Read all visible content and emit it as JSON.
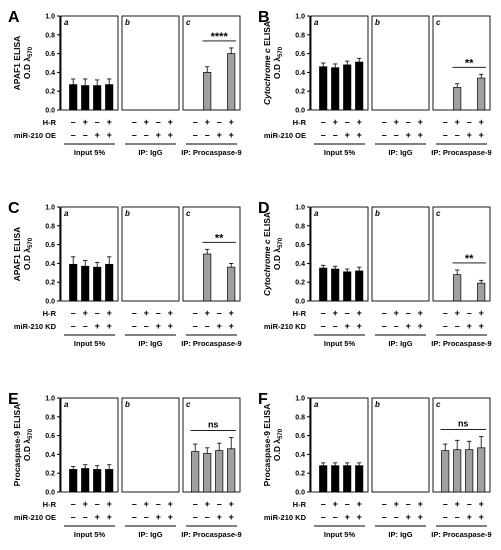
{
  "figure": {
    "panels": [
      {
        "letter": "A",
        "ylabel_pre": "APAF1",
        "ylabel_italic": "",
        "ylabel_post": " ELISA",
        "row2_label": "miR-210 OE",
        "sig_label": "****"
      },
      {
        "letter": "B",
        "ylabel_pre": "",
        "ylabel_italic": "Cytochrome c",
        "ylabel_post": " ELISA",
        "row2_label": "miR-210 OE",
        "sig_label": "**"
      },
      {
        "letter": "C",
        "ylabel_pre": "APAF1",
        "ylabel_italic": "",
        "ylabel_post": " ELISA",
        "row2_label": "miR-210 KD",
        "sig_label": "**"
      },
      {
        "letter": "D",
        "ylabel_pre": "",
        "ylabel_italic": "Cytochrome c",
        "ylabel_post": " ELISA",
        "row2_label": "miR-210 KD",
        "sig_label": "**"
      },
      {
        "letter": "E",
        "ylabel_pre": "Procaspase-9",
        "ylabel_italic": "",
        "ylabel_post": " ELISA",
        "row2_label": "miR-210 OE",
        "sig_label": "ns"
      },
      {
        "letter": "F",
        "ylabel_pre": "Procaspase-9",
        "ylabel_italic": "",
        "ylabel_post": " ELISA",
        "row2_label": "miR-210 KD",
        "sig_label": "ns"
      }
    ],
    "ylabel_line2": "O.D λ",
    "ylabel_sub": "570",
    "row1_label": "H-R",
    "sign_minus": "–",
    "sign_plus": "+",
    "subpanel_letters": [
      "a",
      "b",
      "c"
    ],
    "group_labels": [
      "Input 5%",
      "IP: IgG",
      "IP: Procaspase-9"
    ]
  },
  "chart_data": [
    {
      "type": "bar",
      "panel": "A",
      "ylim": [
        0,
        1.0
      ],
      "yticks": [
        "0.0",
        "0.2",
        "0.4",
        "0.6",
        "0.8",
        "1.0"
      ],
      "groups": [
        "Input 5%",
        "IP: IgG",
        "IP: Procaspase-9"
      ],
      "hr": [
        "–",
        "+",
        "–",
        "+"
      ],
      "mir": [
        "–",
        "–",
        "+",
        "+"
      ],
      "values": [
        [
          0.27,
          0.26,
          0.26,
          0.27
        ],
        [
          0,
          0,
          0,
          0
        ],
        [
          null,
          0.4,
          null,
          0.6
        ]
      ],
      "errors": [
        [
          0.06,
          0.07,
          0.06,
          0.06
        ],
        [
          0,
          0,
          0,
          0
        ],
        [
          null,
          0.06,
          null,
          0.06
        ]
      ],
      "colors": [
        "#000000",
        "#ffffff",
        "#a0a0a0"
      ],
      "significance": {
        "group": 2,
        "bars": [
          1,
          3
        ],
        "label": "****"
      }
    },
    {
      "type": "bar",
      "panel": "B",
      "ylim": [
        0,
        1.0
      ],
      "yticks": [
        "0.0",
        "0.2",
        "0.4",
        "0.6",
        "0.8",
        "1.0"
      ],
      "groups": [
        "Input 5%",
        "IP: IgG",
        "IP: Procaspase-9"
      ],
      "hr": [
        "–",
        "+",
        "–",
        "+"
      ],
      "mir": [
        "–",
        "–",
        "+",
        "+"
      ],
      "values": [
        [
          0.46,
          0.45,
          0.48,
          0.51
        ],
        [
          0,
          0,
          0,
          0
        ],
        [
          null,
          0.24,
          null,
          0.34
        ]
      ],
      "errors": [
        [
          0.04,
          0.04,
          0.04,
          0.04
        ],
        [
          0,
          0,
          0,
          0
        ],
        [
          null,
          0.04,
          null,
          0.04
        ]
      ],
      "colors": [
        "#000000",
        "#ffffff",
        "#a0a0a0"
      ],
      "significance": {
        "group": 2,
        "bars": [
          1,
          3
        ],
        "label": "**"
      }
    },
    {
      "type": "bar",
      "panel": "C",
      "ylim": [
        0,
        1.0
      ],
      "yticks": [
        "0.0",
        "0.2",
        "0.4",
        "0.6",
        "0.8",
        "1.0"
      ],
      "groups": [
        "Input 5%",
        "IP: IgG",
        "IP: Procaspase-9"
      ],
      "hr": [
        "–",
        "+",
        "–",
        "+"
      ],
      "mir": [
        "–",
        "–",
        "+",
        "+"
      ],
      "values": [
        [
          0.39,
          0.37,
          0.36,
          0.39
        ],
        [
          0,
          0,
          0,
          0
        ],
        [
          null,
          0.5,
          null,
          0.36
        ]
      ],
      "errors": [
        [
          0.08,
          0.06,
          0.05,
          0.08
        ],
        [
          0,
          0,
          0,
          0
        ],
        [
          null,
          0.05,
          null,
          0.04
        ]
      ],
      "colors": [
        "#000000",
        "#ffffff",
        "#a0a0a0"
      ],
      "significance": {
        "group": 2,
        "bars": [
          1,
          3
        ],
        "label": "**"
      }
    },
    {
      "type": "bar",
      "panel": "D",
      "ylim": [
        0,
        1.0
      ],
      "yticks": [
        "0.0",
        "0.2",
        "0.4",
        "0.6",
        "0.8",
        "1.0"
      ],
      "groups": [
        "Input 5%",
        "IP: IgG",
        "IP: Procaspase-9"
      ],
      "hr": [
        "–",
        "+",
        "–",
        "+"
      ],
      "mir": [
        "–",
        "–",
        "+",
        "+"
      ],
      "values": [
        [
          0.35,
          0.34,
          0.31,
          0.32
        ],
        [
          0,
          0,
          0,
          0
        ],
        [
          null,
          0.28,
          null,
          0.19
        ]
      ],
      "errors": [
        [
          0.03,
          0.03,
          0.03,
          0.04
        ],
        [
          0,
          0,
          0,
          0
        ],
        [
          null,
          0.05,
          null,
          0.03
        ]
      ],
      "colors": [
        "#000000",
        "#ffffff",
        "#a0a0a0"
      ],
      "significance": {
        "group": 2,
        "bars": [
          1,
          3
        ],
        "label": "**"
      }
    },
    {
      "type": "bar",
      "panel": "E",
      "ylim": [
        0,
        1.0
      ],
      "yticks": [
        "0.0",
        "0.2",
        "0.4",
        "0.6",
        "0.8",
        "1.0"
      ],
      "groups": [
        "Input 5%",
        "IP: IgG",
        "IP: Procaspase-9"
      ],
      "hr": [
        "–",
        "+",
        "–",
        "+"
      ],
      "mir": [
        "–",
        "–",
        "+",
        "+"
      ],
      "values": [
        [
          0.24,
          0.25,
          0.24,
          0.24
        ],
        [
          0,
          0,
          0,
          0
        ],
        [
          0.43,
          0.41,
          0.44,
          0.46
        ]
      ],
      "errors": [
        [
          0.03,
          0.04,
          0.04,
          0.05
        ],
        [
          0,
          0,
          0,
          0
        ],
        [
          0.08,
          0.06,
          0.08,
          0.12
        ]
      ],
      "colors": [
        "#000000",
        "#ffffff",
        "#a0a0a0"
      ],
      "significance": {
        "group": 2,
        "bars": [
          0,
          3
        ],
        "label": "ns"
      }
    },
    {
      "type": "bar",
      "panel": "F",
      "ylim": [
        0,
        1.0
      ],
      "yticks": [
        "0.0",
        "0.2",
        "0.4",
        "0.6",
        "0.8",
        "1.0"
      ],
      "groups": [
        "Input 5%",
        "IP: IgG",
        "IP: Procaspase-9"
      ],
      "hr": [
        "–",
        "+",
        "–",
        "+"
      ],
      "mir": [
        "–",
        "–",
        "+",
        "+"
      ],
      "values": [
        [
          0.28,
          0.28,
          0.28,
          0.28
        ],
        [
          0,
          0,
          0,
          0
        ],
        [
          0.44,
          0.45,
          0.45,
          0.47
        ]
      ],
      "errors": [
        [
          0.03,
          0.03,
          0.03,
          0.03
        ],
        [
          0,
          0,
          0,
          0
        ],
        [
          0.07,
          0.1,
          0.09,
          0.12
        ]
      ],
      "colors": [
        "#000000",
        "#ffffff",
        "#a0a0a0"
      ],
      "significance": {
        "group": 2,
        "bars": [
          0,
          3
        ],
        "label": "ns"
      }
    }
  ]
}
